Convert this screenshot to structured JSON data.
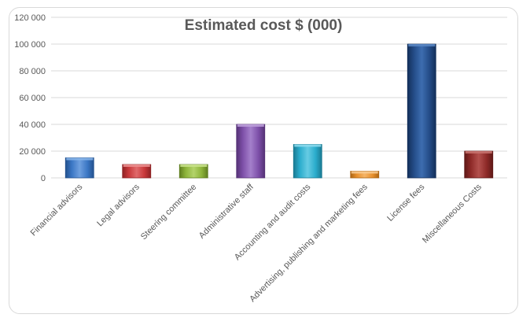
{
  "chart_data": {
    "type": "bar",
    "title": "Estimated cost $ (000)",
    "xlabel": "",
    "ylabel": "",
    "ylim": [
      0,
      120000
    ],
    "yticks": [
      0,
      20000,
      40000,
      60000,
      80000,
      100000,
      120000
    ],
    "ytick_labels": [
      "0",
      "20 000",
      "40 000",
      "60 000",
      "80 000",
      "100 000",
      "120 000"
    ],
    "grid": true,
    "categories": [
      "Financial advisors",
      "Legal advisors",
      "Steering committee",
      "Administrative staff",
      "Accounting and audit costs",
      "Advertising, publishing and marketing fees",
      "License fees",
      "Miscellaneous Costs"
    ],
    "values": [
      15000,
      10000,
      10000,
      40000,
      25000,
      5000,
      100000,
      20000
    ],
    "colors": [
      {
        "base": "#3a76c4",
        "dark": "#24528e",
        "light": "#6fa0df",
        "top": "#8ab6ea"
      },
      {
        "base": "#c8383a",
        "dark": "#8e2224",
        "light": "#e06a6b",
        "top": "#ec9091"
      },
      {
        "base": "#8db43a",
        "dark": "#5f7e20",
        "light": "#b3d36a",
        "top": "#c9e38c"
      },
      {
        "base": "#7d4fa8",
        "dark": "#553276",
        "light": "#a47fcb",
        "top": "#bea1dc"
      },
      {
        "base": "#2aaccc",
        "dark": "#1a7a92",
        "light": "#66cbe3",
        "top": "#8fdcee"
      },
      {
        "base": "#e8902c",
        "dark": "#ad6512",
        "light": "#f5b466",
        "top": "#f8ca90"
      },
      {
        "base": "#234b86",
        "dark": "#14305a",
        "light": "#3d6db0",
        "top": "#5a88c6"
      },
      {
        "base": "#8e2a28",
        "dark": "#5e1816",
        "light": "#b3504d",
        "top": "#c97470"
      }
    ],
    "grid_color": "#d9d9d9"
  }
}
